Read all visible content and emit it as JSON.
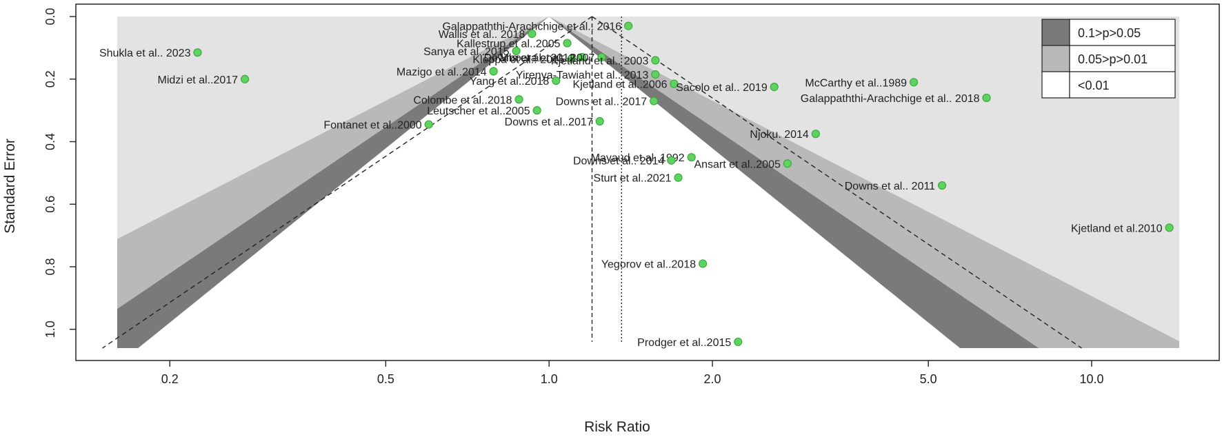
{
  "chart_data": {
    "type": "scatter",
    "subtype": "contour-enhanced funnel plot",
    "title": "",
    "xlabel": "Risk Ratio",
    "ylabel": "Standard Error",
    "x_scale": "log",
    "xlim": [
      0.16,
      14.5
    ],
    "ylim": [
      1.06,
      0.0
    ],
    "x_ticks": [
      0.2,
      0.5,
      1.0,
      2.0,
      5.0,
      10.0
    ],
    "x_tick_labels": [
      "0.2",
      "0.5",
      "1.0",
      "2.0",
      "5.0",
      "10.0"
    ],
    "y_ticks": [
      0.0,
      0.2,
      0.4,
      0.6,
      0.8,
      1.0
    ],
    "y_tick_labels": [
      "0.0",
      "0.2",
      "0.4",
      "0.6",
      "0.8",
      "1.0"
    ],
    "legend": {
      "position": "top-right",
      "entries": [
        {
          "label": "0.1>p>0.05",
          "color": "#7a7a7a"
        },
        {
          "label": "0.05>p>0.01",
          "color": "#b9b9b9"
        },
        {
          "label": "<0.01",
          "color": "#ffffff"
        }
      ]
    },
    "colors": {
      "background_region": "#e3e3e3",
      "band_p10": "#7a7a7a",
      "band_p05": "#b9b9b9",
      "inner_funnel": "#ffffff",
      "points": "#5fd35f",
      "point_outline": "#3ea83e"
    },
    "reference_lines": {
      "fixed_effect_rr": 1.2,
      "random_effect_rr": 1.36,
      "funnel_center_rr": 1.0
    },
    "studies": [
      {
        "label": "Shukla et al.. 2023",
        "rr": 0.225,
        "se": 0.115,
        "label_side": "left"
      },
      {
        "label": "Midzi et al..2017",
        "rr": 0.275,
        "se": 0.2,
        "label_side": "left"
      },
      {
        "label": "Galappaththi-Arachchige et al.. 2016",
        "rr": 1.4,
        "se": 0.03,
        "label_side": "left"
      },
      {
        "label": "Wallis et al.. 2018",
        "rr": 0.93,
        "se": 0.055,
        "label_side": "left"
      },
      {
        "label": "Kallestrup et al..2005",
        "rr": 1.08,
        "se": 0.085,
        "label_side": "left"
      },
      {
        "label": "Sanya et al..2015",
        "rr": 0.87,
        "se": 0.11,
        "label_side": "left"
      },
      {
        "label": "Kleppa et al.. 2015",
        "rr": 1.1,
        "se": 0.135,
        "label_side": "left"
      },
      {
        "label": "Downs et al.. 2012",
        "rr": 1.15,
        "se": 0.13,
        "label_side": "left"
      },
      {
        "label": "Mboera et al.. 2007",
        "rr": 1.25,
        "se": 0.13,
        "label_side": "left"
      },
      {
        "label": "Kjetland et al.. 2003",
        "rr": 1.57,
        "se": 0.14,
        "label_side": "left"
      },
      {
        "label": "Mazigo et al..2014",
        "rr": 0.79,
        "se": 0.175,
        "label_side": "left"
      },
      {
        "label": "Yirenya-Tawiah et al.. 2013",
        "rr": 1.57,
        "se": 0.185,
        "label_side": "left"
      },
      {
        "label": "Yang et al..2018",
        "rr": 1.03,
        "se": 0.205,
        "label_side": "left"
      },
      {
        "label": "Kjetland et al..2006",
        "rr": 1.7,
        "se": 0.215,
        "label_side": "left"
      },
      {
        "label": "Sacolo et al.. 2019",
        "rr": 2.6,
        "se": 0.225,
        "label_side": "left"
      },
      {
        "label": "McCarthy et al..1989",
        "rr": 4.7,
        "se": 0.21,
        "label_side": "left"
      },
      {
        "label": "Galappaththi-Arachchige et al.. 2018",
        "rr": 6.4,
        "se": 0.26,
        "label_side": "left"
      },
      {
        "label": "Colombe et al..2018",
        "rr": 0.88,
        "se": 0.265,
        "label_side": "left"
      },
      {
        "label": "Downs et al.. 2017",
        "rr": 1.56,
        "se": 0.27,
        "label_side": "left"
      },
      {
        "label": "Leutscher et al..2005",
        "rr": 0.95,
        "se": 0.3,
        "label_side": "left"
      },
      {
        "label": "Downs et al..2017",
        "rr": 1.24,
        "se": 0.335,
        "label_side": "left"
      },
      {
        "label": "Fontanet et al..2000",
        "rr": 0.6,
        "se": 0.345,
        "label_side": "left"
      },
      {
        "label": "Njoku. 2014",
        "rr": 3.1,
        "se": 0.375,
        "label_side": "left"
      },
      {
        "label": "Mayaud et al..1992",
        "rr": 1.83,
        "se": 0.45,
        "label_side": "left"
      },
      {
        "label": "Downs et al.. 2014",
        "rr": 1.68,
        "se": 0.46,
        "label_side": "left"
      },
      {
        "label": "Ansart et al..2005",
        "rr": 2.75,
        "se": 0.47,
        "label_side": "left"
      },
      {
        "label": "Sturt et al..2021",
        "rr": 1.73,
        "se": 0.515,
        "label_side": "left"
      },
      {
        "label": "Downs et al.. 2011",
        "rr": 5.3,
        "se": 0.54,
        "label_side": "left"
      },
      {
        "label": "Kjetland et al.2010",
        "rr": 13.9,
        "se": 0.675,
        "label_side": "left"
      },
      {
        "label": "Yegorov et al..2018",
        "rr": 1.92,
        "se": 0.79,
        "label_side": "left"
      },
      {
        "label": "Prodger et al..2015",
        "rr": 2.23,
        "se": 1.04,
        "label_side": "left"
      }
    ]
  }
}
